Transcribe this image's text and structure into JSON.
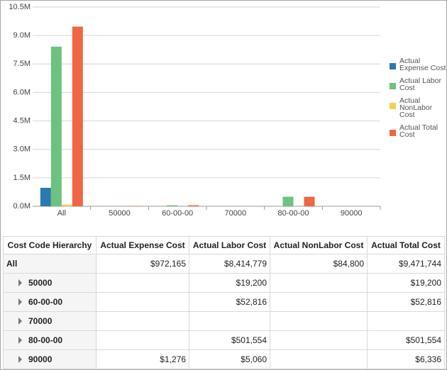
{
  "chart_data": {
    "type": "bar",
    "categories": [
      "All",
      "50000",
      "60-00-00",
      "70000",
      "80-00-00",
      "90000"
    ],
    "series": [
      {
        "name": "Actual Expense Cost",
        "color": "#2b78b5",
        "values": [
          972165,
          null,
          null,
          null,
          null,
          1276
        ]
      },
      {
        "name": "Actual Labor Cost",
        "color": "#6cc27f",
        "values": [
          8414779,
          19200,
          52816,
          null,
          501554,
          5060
        ]
      },
      {
        "name": "Actual NonLabor Cost",
        "color": "#f4d14f",
        "values": [
          84800,
          null,
          null,
          null,
          null,
          null
        ]
      },
      {
        "name": "Actual Total Cost",
        "color": "#ee6646",
        "values": [
          9471744,
          19200,
          52816,
          null,
          501554,
          6336
        ]
      }
    ],
    "ylim": [
      0,
      10500000
    ],
    "yticks": [
      {
        "value": 0,
        "label": "0.0M"
      },
      {
        "value": 1500000,
        "label": "1.5M"
      },
      {
        "value": 3000000,
        "label": "3.0M"
      },
      {
        "value": 4500000,
        "label": "4.5M"
      },
      {
        "value": 6000000,
        "label": "6.0M"
      },
      {
        "value": 7500000,
        "label": "7.5M"
      },
      {
        "value": 9000000,
        "label": "9.0M"
      },
      {
        "value": 10500000,
        "label": "10.5M"
      }
    ],
    "grid": true,
    "legend": "right"
  },
  "table": {
    "columns": [
      "Cost Code Hierarchy",
      "Actual Expense Cost",
      "Actual Labor Cost",
      "Actual NonLabor Cost",
      "Actual Total Cost"
    ],
    "rows": [
      [
        "All",
        "$972,165",
        "$8,414,779",
        "$84,800",
        "$9,471,744"
      ],
      [
        "50000",
        null,
        "$19,200",
        null,
        "$19,200"
      ],
      [
        "60-00-00",
        null,
        "$52,816",
        null,
        "$52,816"
      ],
      [
        "70000",
        null,
        null,
        null,
        null
      ],
      [
        "80-00-00",
        null,
        "$501,554",
        null,
        "$501,554"
      ],
      [
        "90000",
        "$1,276",
        "$5,060",
        null,
        "$6,336"
      ]
    ]
  }
}
